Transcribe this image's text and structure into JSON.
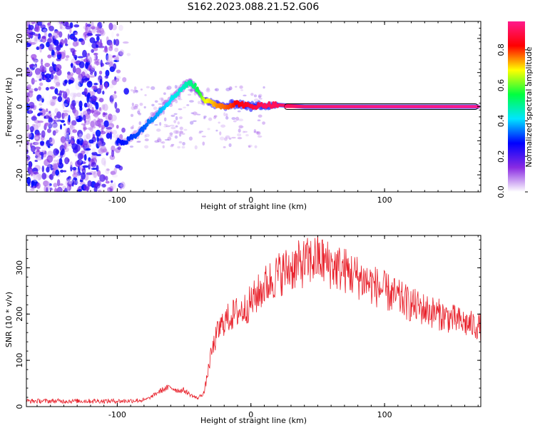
{
  "title": "S162.2023.088.21.52.G06",
  "chart_data": [
    {
      "type": "heatmap",
      "xlabel": "Height of straight line (km)",
      "ylabel": "Frequency (Hz)",
      "xlim": [
        -168,
        172
      ],
      "ylim": [
        -25,
        25
      ],
      "xticks": [
        -100,
        0,
        100
      ],
      "xtick_labels": [
        "-100",
        "0",
        "100"
      ],
      "yticks": [
        -20,
        -10,
        0,
        10,
        20
      ],
      "ytick_labels": [
        "-20",
        "-10",
        "0",
        "10",
        "20"
      ],
      "colorbar": {
        "label": "Normalized spectral amplitude",
        "range": [
          0,
          0.96
        ],
        "ticks": [
          0.0,
          0.2,
          0.4,
          0.6,
          0.8
        ],
        "tick_labels": [
          "0.0",
          "0.2",
          "0.4",
          "0.6",
          "0.8"
        ],
        "colormap": [
          "#ffffff",
          "#8a2be2",
          "#0000ff",
          "#00e5ff",
          "#00ff40",
          "#ffff00",
          "#ff0000",
          "#ff1a8c"
        ]
      },
      "ridge": {
        "x": [
          -100,
          -95,
          -90,
          -85,
          -80,
          -75,
          -70,
          -65,
          -60,
          -55,
          -50,
          -45,
          -42,
          -38,
          -35,
          -30,
          -25,
          -20,
          -15,
          -10,
          -5,
          0,
          10,
          20,
          40,
          60,
          80,
          100,
          130,
          160,
          170
        ],
        "y": [
          -10,
          -11,
          -9,
          -8,
          -6,
          -4,
          -2,
          0,
          2,
          4,
          6,
          7,
          6,
          4,
          2,
          1,
          0.5,
          0,
          0.5,
          1,
          0.5,
          0,
          0.5,
          0.5,
          0,
          0,
          0,
          0,
          0,
          0,
          0
        ],
        "amplitude": [
          0.22,
          0.22,
          0.24,
          0.25,
          0.26,
          0.28,
          0.3,
          0.32,
          0.34,
          0.36,
          0.38,
          0.42,
          0.45,
          0.5,
          0.6,
          0.65,
          0.7,
          0.72,
          0.75,
          0.8,
          0.82,
          0.85,
          0.9,
          0.9,
          0.92,
          0.93,
          0.94,
          0.95,
          0.95,
          0.96,
          0.96
        ]
      },
      "noise_region_x": [
        -168,
        -90
      ]
    },
    {
      "type": "line",
      "xlabel": "Height of straight line (km)",
      "ylabel": "SNR (10 * v/v)",
      "xlim": [
        -168,
        172
      ],
      "ylim": [
        0,
        370
      ],
      "xticks": [
        -100,
        0,
        100
      ],
      "xtick_labels": [
        "-100",
        "0",
        "100"
      ],
      "yticks": [
        0,
        100,
        200,
        300
      ],
      "ytick_labels": [
        "0",
        "100",
        "200",
        "300"
      ],
      "color": "#e8202a",
      "series": [
        {
          "x": [
            -168,
            -150,
            -130,
            -110,
            -95,
            -80,
            -75,
            -70,
            -65,
            -60,
            -55,
            -50,
            -45,
            -40,
            -35,
            -30,
            -25,
            -20,
            -15,
            -10,
            -5,
            0,
            10,
            20,
            30,
            40,
            50,
            60,
            70,
            80,
            90,
            100,
            110,
            120,
            130,
            140,
            150,
            160,
            172
          ],
          "y": [
            12,
            12,
            12,
            12,
            12,
            14,
            20,
            30,
            38,
            42,
            35,
            35,
            25,
            18,
            30,
            110,
            160,
            185,
            195,
            205,
            210,
            225,
            260,
            285,
            300,
            310,
            320,
            305,
            295,
            280,
            265,
            250,
            235,
            220,
            210,
            200,
            190,
            180,
            172
          ]
        }
      ]
    }
  ]
}
